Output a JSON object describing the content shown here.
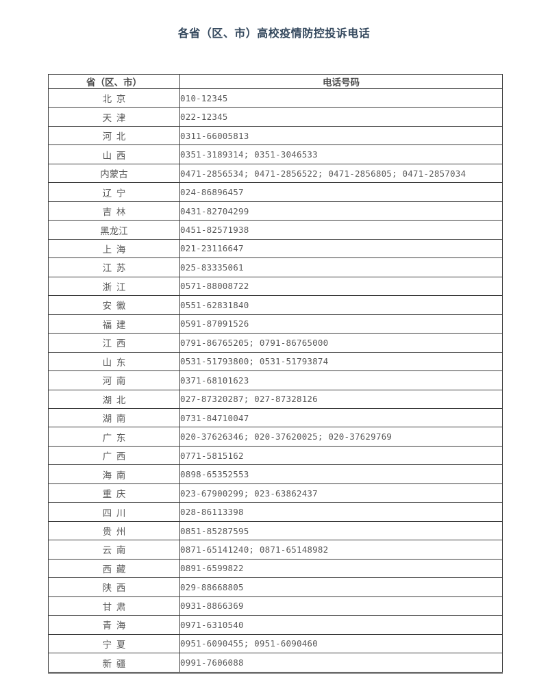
{
  "page": {
    "title": "各省（区、市）高校疫情防控投诉电话"
  },
  "table": {
    "headers": {
      "province": "省（区、市）",
      "phone": "电话号码"
    },
    "rows": [
      {
        "province": "北 京",
        "phones": "010-12345"
      },
      {
        "province": "天 津",
        "phones": "022-12345"
      },
      {
        "province": "河 北",
        "phones": "0311-66005813"
      },
      {
        "province": "山 西",
        "phones": "0351-3189314; 0351-3046533"
      },
      {
        "province": "内蒙古",
        "phones": "0471-2856534; 0471-2856522; 0471-2856805; 0471-2857034"
      },
      {
        "province": "辽 宁",
        "phones": "024-86896457"
      },
      {
        "province": "吉 林",
        "phones": "0431-82704299"
      },
      {
        "province": "黑龙江",
        "phones": "0451-82571938"
      },
      {
        "province": "上 海",
        "phones": "021-23116647"
      },
      {
        "province": "江 苏",
        "phones": "025-83335061"
      },
      {
        "province": "浙 江",
        "phones": "0571-88008722"
      },
      {
        "province": "安 徽",
        "phones": "0551-62831840"
      },
      {
        "province": "福 建",
        "phones": "0591-87091526"
      },
      {
        "province": "江 西",
        "phones": "0791-86765205; 0791-86765000"
      },
      {
        "province": "山 东",
        "phones": "0531-51793800; 0531-51793874"
      },
      {
        "province": "河 南",
        "phones": "0371-68101623"
      },
      {
        "province": "湖 北",
        "phones": "027-87320287; 027-87328126"
      },
      {
        "province": "湖 南",
        "phones": "0731-84710047"
      },
      {
        "province": "广 东",
        "phones": "020-37626346; 020-37620025; 020-37629769"
      },
      {
        "province": "广 西",
        "phones": "0771-5815162"
      },
      {
        "province": "海 南",
        "phones": "0898-65352553"
      },
      {
        "province": "重 庆",
        "phones": "023-67900299; 023-63862437"
      },
      {
        "province": "四 川",
        "phones": "028-86113398"
      },
      {
        "province": "贵 州",
        "phones": "0851-85287595"
      },
      {
        "province": "云 南",
        "phones": "0871-65141240; 0871-65148982"
      },
      {
        "province": "西 藏",
        "phones": "0891-6599822"
      },
      {
        "province": "陕 西",
        "phones": "029-88668805"
      },
      {
        "province": "甘 肃",
        "phones": "0931-8866369"
      },
      {
        "province": "青 海",
        "phones": "0971-6310540"
      },
      {
        "province": "宁 夏",
        "phones": "0951-6090455; 0951-6090460"
      },
      {
        "province": "新 疆",
        "phones": "0991-7606088"
      }
    ]
  },
  "colors": {
    "title_text": "#35495e",
    "body_text": "#595959",
    "header_text": "#4a4a4a",
    "border": "#3b3b3b",
    "background": "#ffffff"
  }
}
